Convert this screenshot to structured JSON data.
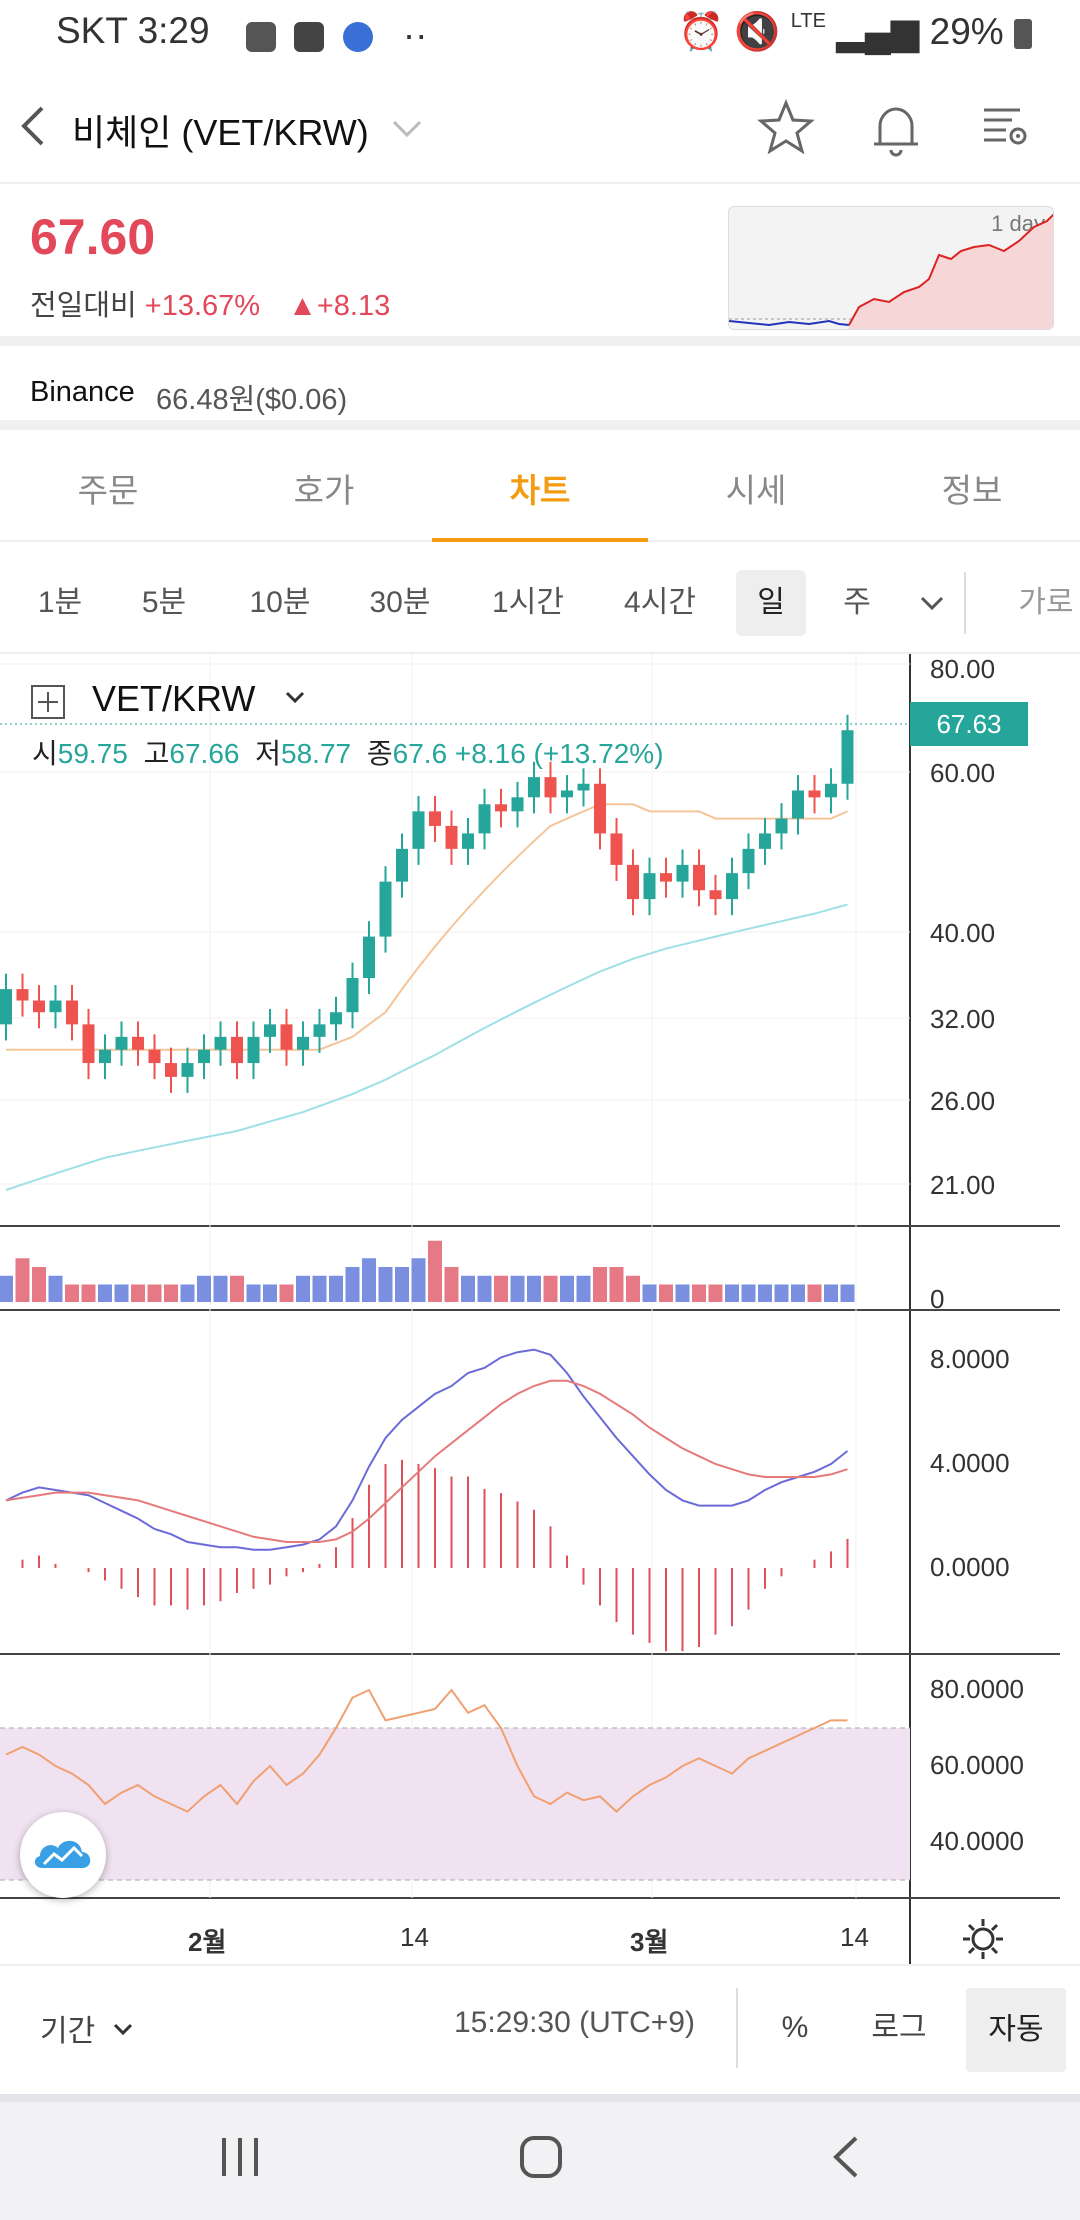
{
  "status": {
    "carrier": "SKT 3:29",
    "network": "LTE",
    "battery": "29%"
  },
  "header": {
    "title": "비체인 (VET/KRW)"
  },
  "price": {
    "value": "67.60",
    "change_label": "전일대비",
    "change_pct": "+13.67%",
    "change_abs": "▲+8.13",
    "mini_label": "1 day"
  },
  "exchange": {
    "name": "Binance",
    "value": "66.48원($0.06)"
  },
  "tabs": [
    "주문",
    "호가",
    "차트",
    "시세",
    "정보"
  ],
  "intervals": [
    "1분",
    "5분",
    "10분",
    "30분",
    "1시간",
    "4시간",
    "일",
    "주",
    "가로"
  ],
  "chart": {
    "symbol": "VET/KRW",
    "ohlc": {
      "o_label": "시",
      "o": "59.75",
      "h_label": "고",
      "h": "67.66",
      "l_label": "저",
      "l": "58.77",
      "c_label": "종",
      "c": "67.6",
      "chg": "+8.16 (+13.72%)"
    },
    "last_price": "67.63",
    "price_ticks": [
      "80.00",
      "60.00",
      "40.00",
      "32.00",
      "26.00",
      "21.00"
    ],
    "vol_tick": "0",
    "macd_ticks": [
      "8.0000",
      "4.0000",
      "0.0000"
    ],
    "rsi_ticks": [
      "80.0000",
      "60.0000",
      "40.0000"
    ],
    "x_ticks": [
      "2월",
      "14",
      "3월",
      "14"
    ]
  },
  "chart_data": {
    "type": "candlestick",
    "title": "VET/KRW",
    "x_labels": [
      "2월",
      "14",
      "3월",
      "14"
    ],
    "open": [
      32,
      35,
      34,
      33,
      34,
      32,
      29,
      30,
      31,
      30,
      29,
      28,
      29,
      30,
      31,
      29,
      31,
      32,
      30,
      31,
      32,
      33,
      36,
      40,
      46,
      50,
      55,
      53,
      50,
      52,
      56,
      55,
      57,
      60,
      57,
      58,
      59,
      52,
      48,
      44,
      47,
      46,
      48,
      45,
      44,
      47,
      50,
      52,
      54,
      58,
      57,
      59
    ],
    "close": [
      35,
      34,
      33,
      34,
      32,
      29,
      30,
      31,
      30,
      29,
      28,
      29,
      30,
      31,
      29,
      31,
      32,
      30,
      31,
      32,
      33,
      36,
      40,
      46,
      50,
      55,
      53,
      50,
      52,
      56,
      55,
      57,
      60,
      57,
      58,
      59,
      52,
      48,
      44,
      47,
      46,
      48,
      45,
      44,
      47,
      50,
      52,
      54,
      58,
      57,
      59,
      67.6
    ],
    "ma_short": [
      30,
      30,
      30,
      30,
      30,
      30,
      30,
      30,
      30,
      30,
      30,
      30,
      30,
      30,
      30,
      30,
      30,
      30,
      30,
      30,
      30.5,
      31,
      32,
      33,
      35,
      37,
      39,
      41,
      43,
      45,
      47,
      49,
      51,
      53,
      54,
      55,
      56,
      56,
      56,
      55,
      55,
      55,
      55,
      54,
      54,
      54,
      54,
      54,
      54,
      54,
      54,
      55
    ],
    "ma_long": [
      21,
      21.3,
      21.6,
      21.9,
      22.2,
      22.5,
      22.8,
      23,
      23.2,
      23.4,
      23.6,
      23.8,
      24,
      24.2,
      24.4,
      24.7,
      25,
      25.3,
      25.6,
      26,
      26.4,
      26.8,
      27.3,
      27.8,
      28.4,
      29,
      29.6,
      30.3,
      31,
      31.7,
      32.4,
      33.1,
      33.8,
      34.5,
      35.2,
      35.9,
      36.6,
      37.2,
      37.8,
      38.3,
      38.8,
      39.2,
      39.6,
      40,
      40.4,
      40.8,
      41.2,
      41.6,
      42,
      42.4,
      42.9,
      43.4
    ],
    "volume": [
      3,
      5,
      4,
      3,
      2,
      2,
      2,
      2,
      2,
      2,
      2,
      2,
      3,
      3,
      3,
      2,
      2,
      2,
      3,
      3,
      3,
      4,
      5,
      4,
      4,
      5,
      7,
      4,
      3,
      3,
      3,
      3,
      3,
      3,
      3,
      3,
      4,
      4,
      3,
      2,
      2,
      2,
      2,
      2,
      2,
      2,
      2,
      2,
      2,
      2,
      2,
      2
    ],
    "macd": [
      2.6,
      2.9,
      3.1,
      3.0,
      2.9,
      2.8,
      2.5,
      2.2,
      1.9,
      1.5,
      1.3,
      1.0,
      0.9,
      0.8,
      0.8,
      0.7,
      0.7,
      0.8,
      0.9,
      1.1,
      1.6,
      2.6,
      3.9,
      5.0,
      5.7,
      6.2,
      6.7,
      7.0,
      7.5,
      7.7,
      8.1,
      8.3,
      8.4,
      8.2,
      7.5,
      6.6,
      5.8,
      5.0,
      4.3,
      3.6,
      3.0,
      2.6,
      2.4,
      2.4,
      2.4,
      2.6,
      3.0,
      3.3,
      3.5,
      3.7,
      4.0,
      4.5
    ],
    "signal": [
      2.6,
      2.7,
      2.8,
      2.9,
      2.9,
      2.9,
      2.8,
      2.7,
      2.6,
      2.4,
      2.2,
      2.0,
      1.8,
      1.6,
      1.4,
      1.2,
      1.1,
      1.0,
      1.0,
      1.0,
      1.1,
      1.4,
      1.9,
      2.5,
      3.1,
      3.7,
      4.3,
      4.8,
      5.3,
      5.8,
      6.3,
      6.7,
      7.0,
      7.2,
      7.2,
      7.0,
      6.7,
      6.3,
      5.9,
      5.4,
      5.0,
      4.6,
      4.3,
      4.0,
      3.8,
      3.6,
      3.5,
      3.5,
      3.5,
      3.5,
      3.6,
      3.8
    ],
    "rsi": [
      63,
      65,
      63,
      60,
      58,
      55,
      50,
      53,
      55,
      52,
      50,
      48,
      52,
      55,
      50,
      56,
      60,
      55,
      58,
      63,
      70,
      78,
      80,
      72,
      73,
      74,
      75,
      80,
      74,
      76,
      70,
      60,
      52,
      50,
      53,
      51,
      52,
      48,
      52,
      55,
      57,
      60,
      62,
      60,
      58,
      62,
      64,
      66,
      68,
      70,
      72,
      72
    ],
    "ylim": [
      20,
      85
    ]
  }
}
